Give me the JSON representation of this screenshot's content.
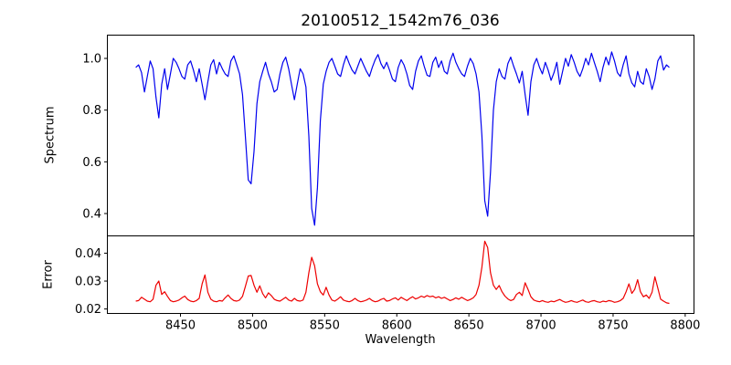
{
  "figure": {
    "background": "#ffffff",
    "text_color": "#000000"
  },
  "chart_data": {
    "type": "line",
    "title": "20100512_1542m76_036",
    "xlabel": "Wavelength",
    "x_start": 8419,
    "x_step": 2,
    "xlim": [
      8399.3,
      8806.1
    ],
    "x_ticks": [
      8450,
      8500,
      8550,
      8600,
      8650,
      8700,
      8750,
      8800
    ],
    "x_tick_labels": [
      "8450",
      "8500",
      "8550",
      "8600",
      "8650",
      "8700",
      "8750",
      "8800"
    ],
    "grid": false,
    "legend": "none",
    "panels": [
      {
        "name": "spectrum",
        "ylabel": "Spectrum",
        "line_color": "#0000ee",
        "ylim": [
          0.3136,
          1.09
        ],
        "y_ticks": [
          0.4,
          0.6,
          0.8,
          1.0
        ],
        "y_tick_labels": [
          "0.4",
          "0.6",
          "0.8",
          "1.0"
        ],
        "absorption_lines": [
          {
            "center": 8434,
            "depth": 0.77
          },
          {
            "center": 8467,
            "depth": 0.84
          },
          {
            "center": 8498,
            "depth": 0.51
          },
          {
            "center": 8516,
            "depth": 0.87
          },
          {
            "center": 8529,
            "depth": 0.84
          },
          {
            "center": 8542,
            "depth": 0.36
          },
          {
            "center": 8611,
            "depth": 0.88
          },
          {
            "center": 8662,
            "depth": 0.39
          },
          {
            "center": 8690,
            "depth": 0.78
          }
        ],
        "values": [
          0.965,
          0.975,
          0.945,
          0.87,
          0.93,
          0.99,
          0.96,
          0.85,
          0.77,
          0.9,
          0.96,
          0.88,
          0.94,
          1.0,
          0.985,
          0.96,
          0.93,
          0.92,
          0.975,
          0.99,
          0.955,
          0.91,
          0.96,
          0.9,
          0.84,
          0.91,
          0.975,
          0.995,
          0.94,
          0.985,
          0.96,
          0.94,
          0.93,
          0.99,
          1.01,
          0.975,
          0.94,
          0.86,
          0.7,
          0.53,
          0.515,
          0.64,
          0.825,
          0.91,
          0.95,
          0.985,
          0.94,
          0.91,
          0.87,
          0.88,
          0.94,
          0.985,
          1.005,
          0.96,
          0.9,
          0.84,
          0.9,
          0.96,
          0.94,
          0.89,
          0.7,
          0.42,
          0.355,
          0.5,
          0.76,
          0.9,
          0.95,
          0.985,
          1.0,
          0.97,
          0.94,
          0.93,
          0.975,
          1.01,
          0.98,
          0.955,
          0.94,
          0.97,
          1.0,
          0.975,
          0.95,
          0.93,
          0.965,
          0.995,
          1.015,
          0.98,
          0.96,
          0.985,
          0.955,
          0.92,
          0.91,
          0.965,
          0.995,
          0.975,
          0.94,
          0.895,
          0.88,
          0.95,
          0.99,
          1.01,
          0.97,
          0.935,
          0.93,
          0.985,
          1.005,
          0.965,
          0.99,
          0.95,
          0.94,
          0.99,
          1.02,
          0.985,
          0.96,
          0.94,
          0.93,
          0.97,
          1.0,
          0.98,
          0.94,
          0.87,
          0.7,
          0.45,
          0.39,
          0.56,
          0.8,
          0.91,
          0.96,
          0.93,
          0.92,
          0.98,
          1.005,
          0.97,
          0.94,
          0.905,
          0.95,
          0.86,
          0.78,
          0.91,
          0.975,
          1.0,
          0.965,
          0.94,
          0.985,
          0.955,
          0.915,
          0.945,
          0.985,
          0.9,
          0.95,
          1.0,
          0.97,
          1.015,
          0.985,
          0.95,
          0.93,
          0.96,
          1.0,
          0.975,
          1.02,
          0.985,
          0.95,
          0.91,
          0.965,
          1.005,
          0.975,
          1.025,
          0.99,
          0.945,
          0.93,
          0.975,
          1.01,
          0.94,
          0.905,
          0.89,
          0.95,
          0.91,
          0.9,
          0.96,
          0.93,
          0.88,
          0.92,
          0.99,
          1.01,
          0.955,
          0.975,
          0.965
        ]
      },
      {
        "name": "error",
        "ylabel": "Error",
        "line_color": "#ee0000",
        "ylim": [
          0.0184,
          0.0462
        ],
        "y_ticks": [
          0.02,
          0.03,
          0.04
        ],
        "y_tick_labels": [
          "0.02",
          "0.03",
          "0.04"
        ],
        "peaks": [
          {
            "center": 8434,
            "height": 0.03
          },
          {
            "center": 8467,
            "height": 0.0322
          },
          {
            "center": 8499,
            "height": 0.032
          },
          {
            "center": 8541,
            "height": 0.0385
          },
          {
            "center": 8661,
            "height": 0.0443
          },
          {
            "center": 8689,
            "height": 0.0294
          },
          {
            "center": 8767,
            "height": 0.0305
          },
          {
            "center": 8779,
            "height": 0.0315
          }
        ],
        "values": [
          0.0228,
          0.023,
          0.0242,
          0.0235,
          0.0228,
          0.0226,
          0.0235,
          0.0285,
          0.03,
          0.0252,
          0.0262,
          0.0245,
          0.023,
          0.0226,
          0.0228,
          0.0232,
          0.024,
          0.0246,
          0.0234,
          0.0228,
          0.0226,
          0.023,
          0.0238,
          0.029,
          0.0322,
          0.026,
          0.0235,
          0.0228,
          0.0226,
          0.023,
          0.0228,
          0.024,
          0.025,
          0.0238,
          0.023,
          0.0228,
          0.0232,
          0.0245,
          0.028,
          0.0318,
          0.032,
          0.0285,
          0.026,
          0.0283,
          0.0255,
          0.024,
          0.0258,
          0.0248,
          0.0235,
          0.023,
          0.0228,
          0.0235,
          0.0242,
          0.0232,
          0.0228,
          0.0238,
          0.023,
          0.0228,
          0.0232,
          0.026,
          0.033,
          0.0385,
          0.0355,
          0.029,
          0.0262,
          0.025,
          0.0278,
          0.025,
          0.0232,
          0.0228,
          0.0235,
          0.0244,
          0.0232,
          0.0228,
          0.0226,
          0.023,
          0.0238,
          0.023,
          0.0226,
          0.0228,
          0.0232,
          0.0238,
          0.023,
          0.0226,
          0.0228,
          0.0234,
          0.0238,
          0.0228,
          0.023,
          0.0236,
          0.024,
          0.0232,
          0.0242,
          0.0236,
          0.023,
          0.0238,
          0.0244,
          0.0236,
          0.024,
          0.0246,
          0.0242,
          0.0248,
          0.0244,
          0.0246,
          0.024,
          0.0244,
          0.0238,
          0.0242,
          0.0236,
          0.023,
          0.0234,
          0.024,
          0.0235,
          0.0242,
          0.0236,
          0.023,
          0.0234,
          0.024,
          0.0252,
          0.0285,
          0.035,
          0.0443,
          0.042,
          0.033,
          0.0285,
          0.027,
          0.0284,
          0.0262,
          0.0246,
          0.0236,
          0.023,
          0.0234,
          0.0252,
          0.026,
          0.0248,
          0.0294,
          0.027,
          0.0244,
          0.0232,
          0.0228,
          0.0226,
          0.023,
          0.0226,
          0.0224,
          0.0228,
          0.0226,
          0.023,
          0.0234,
          0.0228,
          0.0224,
          0.0226,
          0.023,
          0.0226,
          0.0224,
          0.0228,
          0.0232,
          0.0226,
          0.0224,
          0.0228,
          0.023,
          0.0226,
          0.0224,
          0.0228,
          0.0226,
          0.023,
          0.0228,
          0.0224,
          0.0226,
          0.023,
          0.0238,
          0.0262,
          0.029,
          0.0256,
          0.027,
          0.0305,
          0.0262,
          0.0244,
          0.025,
          0.0238,
          0.026,
          0.0315,
          0.0275,
          0.0235,
          0.0228,
          0.0222,
          0.022
        ]
      }
    ]
  }
}
